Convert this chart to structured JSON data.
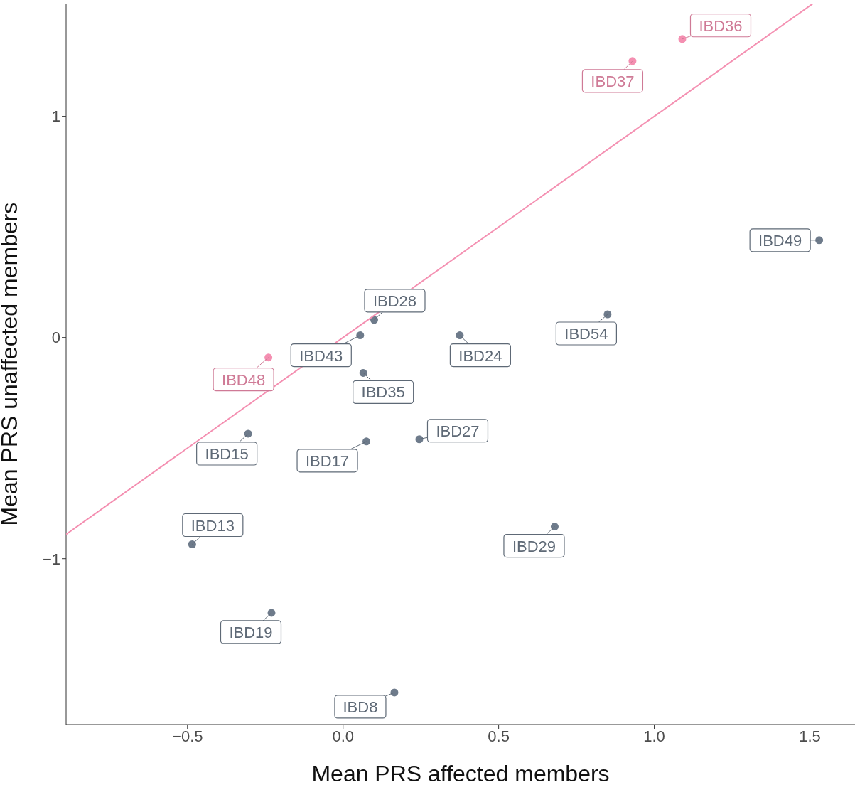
{
  "chart_data": {
    "type": "scatter",
    "xlabel": "Mean PRS affected members",
    "ylabel": "Mean PRS unaffected members",
    "xlim": [
      -0.89,
      1.645
    ],
    "ylim": [
      -1.75,
      1.51
    ],
    "xticks": [
      {
        "value": -0.5,
        "label": "−0.5"
      },
      {
        "value": 0,
        "label": "0.0"
      },
      {
        "value": 0.5,
        "label": "0.5"
      },
      {
        "value": 1,
        "label": "1.0"
      },
      {
        "value": 1.5,
        "label": "1.5"
      }
    ],
    "yticks": [
      {
        "value": -1,
        "label": "−1"
      },
      {
        "value": 0,
        "label": "0"
      },
      {
        "value": 1,
        "label": "1"
      }
    ],
    "grid": false,
    "legend": false,
    "marker": "circle",
    "series": [
      {
        "color": "#f48fb1",
        "x": [
          1.09,
          0.93,
          -0.24
        ],
        "values": [
          1.35,
          1.25,
          -0.09
        ]
      },
      {
        "color": "#6e7b8b",
        "x": [
          1.53,
          0.1,
          0.055,
          0.375,
          0.85,
          0.065,
          -0.305,
          0.075,
          0.245,
          -0.485,
          0.68,
          -0.23,
          0.165
        ],
        "values": [
          0.44,
          0.08,
          0.01,
          0.01,
          0.105,
          -0.16,
          -0.435,
          -0.47,
          -0.46,
          -0.935,
          -0.855,
          -1.245,
          -1.605
        ]
      },
      {
        "type": "line",
        "marker": "none",
        "color": "#f48fb1",
        "x": [
          -0.89,
          1.51
        ],
        "values": [
          -0.89,
          1.51
        ]
      }
    ],
    "annotations": [
      {
        "text": "IBD36",
        "x": 1.09,
        "y": 1.35
      },
      {
        "text": "IBD37",
        "x": 0.93,
        "y": 1.25
      },
      {
        "text": "IBD48",
        "x": -0.24,
        "y": -0.09
      },
      {
        "text": "IBD49",
        "x": 1.53,
        "y": 0.44
      },
      {
        "text": "IBD28",
        "x": 0.1,
        "y": 0.08
      },
      {
        "text": "IBD43",
        "x": 0.055,
        "y": 0.01
      },
      {
        "text": "IBD24",
        "x": 0.375,
        "y": 0.01
      },
      {
        "text": "IBD54",
        "x": 0.85,
        "y": 0.105
      },
      {
        "text": "IBD35",
        "x": 0.065,
        "y": -0.16
      },
      {
        "text": "IBD15",
        "x": -0.305,
        "y": -0.435
      },
      {
        "text": "IBD17",
        "x": 0.075,
        "y": -0.47
      },
      {
        "text": "IBD27",
        "x": 0.245,
        "y": -0.46
      },
      {
        "text": "IBD13",
        "x": -0.485,
        "y": -0.935
      },
      {
        "text": "IBD29",
        "x": 0.68,
        "y": -0.855
      },
      {
        "text": "IBD19",
        "x": -0.23,
        "y": -1.245
      },
      {
        "text": "IBD8",
        "x": 0.165,
        "y": -1.605
      }
    ]
  }
}
